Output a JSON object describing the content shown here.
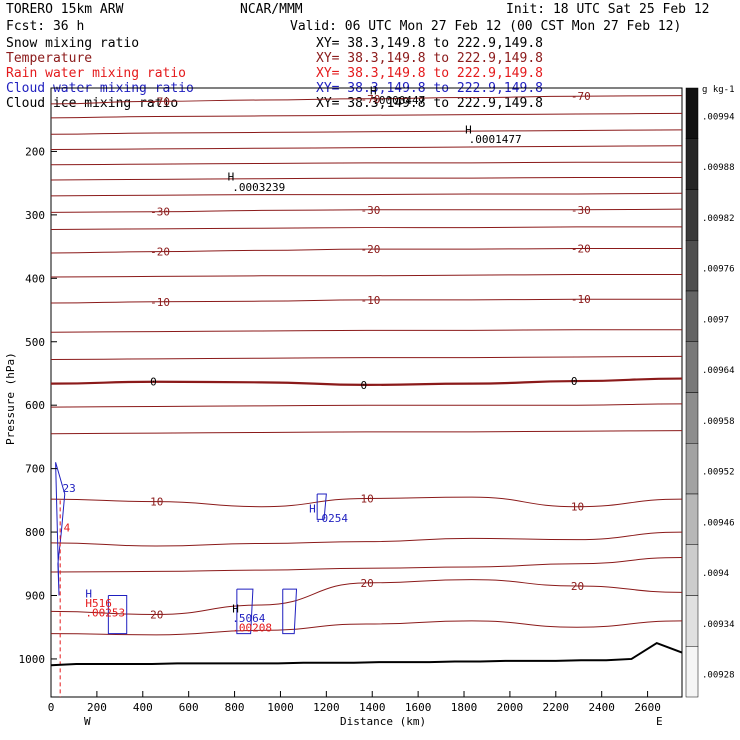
{
  "header": {
    "model": "TORERO  15km ARW",
    "org": "NCAR/MMM",
    "init": "Init: 18 UTC Sat 25 Feb 12",
    "fcst": "Fcst:   36 h",
    "valid": "Valid: 06 UTC Mon 27 Feb 12 (00 CST Mon 27 Feb 12)"
  },
  "fields": [
    {
      "label": "Snow mixing ratio",
      "xy": "XY=  38.3,149.8 to 222.9,149.8",
      "color": "#000000"
    },
    {
      "label": "Temperature",
      "xy": "XY=  38.3,149.8 to 222.9,149.8",
      "color": "#8b1a1a"
    },
    {
      "label": "Rain water mixing ratio",
      "xy": "XY=  38.3,149.8 to 222.9,149.8",
      "color": "#e41a1c"
    },
    {
      "label": "Cloud water mixing ratio",
      "xy": "XY=  38.3,149.8 to 222.9,149.8",
      "color": "#1f1fbf"
    },
    {
      "label": "Cloud ice mixing ratio",
      "xy": "XY=  38.3,149.8 to 222.9,149.8",
      "color": "#000000"
    }
  ],
  "chart_data": {
    "type": "contour cross-section",
    "xlabel": "Distance (km)",
    "ylabel": "Pressure (hPa)",
    "x_ticks": [
      0,
      200,
      400,
      600,
      800,
      1000,
      1200,
      1400,
      1600,
      1800,
      2000,
      2200,
      2400,
      2600
    ],
    "y_ticks": [
      200,
      300,
      400,
      500,
      600,
      700,
      800,
      900,
      1000
    ],
    "xlim": [
      0,
      2750
    ],
    "ylim": [
      1060,
      100
    ],
    "left_end_label": "W",
    "right_end_label": "E",
    "temperature_contours": [
      {
        "level": "-70",
        "p": [
          125,
          121,
          119,
          117,
          115,
          113,
          112
        ]
      },
      {
        "level": "",
        "p": [
          147,
          145,
          144,
          143,
          142,
          141,
          140
        ]
      },
      {
        "level": "",
        "p": [
          173,
          171,
          170,
          169,
          168,
          167,
          166
        ]
      },
      {
        "level": "",
        "p": [
          197,
          196,
          195,
          194,
          193,
          192,
          191
        ]
      },
      {
        "level": "",
        "p": [
          221,
          220,
          219,
          218,
          218,
          217,
          217
        ]
      },
      {
        "level": "",
        "p": [
          245,
          244,
          243,
          242,
          242,
          241,
          241
        ]
      },
      {
        "level": "",
        "p": [
          270,
          269,
          268,
          268,
          267,
          267,
          266
        ]
      },
      {
        "level": "-30",
        "p": [
          296,
          295,
          293,
          292,
          292,
          292,
          291
        ]
      },
      {
        "level": "",
        "p": [
          323,
          322,
          321,
          320,
          320,
          319,
          319
        ]
      },
      {
        "level": "-20",
        "p": [
          360,
          358,
          356,
          354,
          354,
          353,
          353
        ]
      },
      {
        "level": "",
        "p": [
          398,
          397,
          396,
          396,
          395,
          394,
          394
        ]
      },
      {
        "level": "-10",
        "p": [
          439,
          437,
          436,
          434,
          434,
          433,
          433
        ]
      },
      {
        "level": "",
        "p": [
          485,
          484,
          483,
          482,
          482,
          481,
          481
        ]
      },
      {
        "level": "",
        "p": [
          528,
          527,
          526,
          525,
          525,
          524,
          523
        ]
      },
      {
        "level": "0",
        "p": [
          566,
          563,
          564,
          568,
          566,
          562,
          558
        ]
      },
      {
        "level": "",
        "p": [
          603,
          602,
          601,
          600,
          600,
          600,
          598
        ]
      },
      {
        "level": "",
        "p": [
          645,
          644,
          643,
          642,
          642,
          641,
          640
        ]
      },
      {
        "level": "10",
        "p": [
          748,
          752,
          760,
          747,
          745,
          760,
          748
        ]
      },
      {
        "level": "",
        "p": [
          817,
          822,
          818,
          815,
          810,
          812,
          800
        ]
      },
      {
        "level": "",
        "p": [
          863,
          862,
          860,
          857,
          855,
          850,
          840
        ]
      },
      {
        "level": "20",
        "p": [
          925,
          930,
          915,
          880,
          875,
          885,
          895
        ]
      },
      {
        "level": "",
        "p": [
          960,
          962,
          955,
          945,
          940,
          950,
          940
        ]
      }
    ],
    "annotations": [
      {
        "text": "H",
        "x": 1390,
        "p": 110,
        "color": "#000000"
      },
      {
        "text": ".0000447",
        "x": 1400,
        "p": 125,
        "color": "#000000"
      },
      {
        "text": "H",
        "x": 1805,
        "p": 172,
        "color": "#000000"
      },
      {
        "text": ".0001477",
        "x": 1820,
        "p": 187,
        "color": "#000000"
      },
      {
        "text": "H",
        "x": 770,
        "p": 246,
        "color": "#000000"
      },
      {
        "text": ".0003239",
        "x": 790,
        "p": 262,
        "color": "#000000"
      },
      {
        "text": "H",
        "x": 1125,
        "p": 769,
        "color": "#1f1fbf"
      },
      {
        "text": ".0254",
        "x": 1150,
        "p": 784,
        "color": "#1f1fbf"
      },
      {
        "text": "H",
        "x": 150,
        "p": 903,
        "color": "#1f1fbf"
      },
      {
        "text": "H516",
        "x": 150,
        "p": 918,
        "color": "#e41a1c"
      },
      {
        "text": ".00253",
        "x": 150,
        "p": 933,
        "color": "#e41a1c"
      },
      {
        "text": "H",
        "x": 790,
        "p": 927,
        "color": "#000000"
      },
      {
        "text": ".5064",
        "x": 790,
        "p": 942,
        "color": "#1f1fbf"
      },
      {
        "text": ".00208",
        "x": 790,
        "p": 957,
        "color": "#e41a1c"
      },
      {
        "text": "4",
        "x": 55,
        "p": 799,
        "color": "#e41a1c"
      },
      {
        "text": "23",
        "x": 50,
        "p": 737,
        "color": "#1f1fbf"
      }
    ],
    "cloud_water_contours": [
      {
        "x": [
          20,
          60,
          45,
          30,
          35,
          20
        ],
        "p": [
          690,
          740,
          800,
          850,
          900,
          690
        ]
      },
      {
        "x": [
          250,
          330,
          330,
          250,
          250
        ],
        "p": [
          900,
          900,
          960,
          960,
          900
        ]
      },
      {
        "x": [
          810,
          880,
          870,
          810,
          810
        ],
        "p": [
          890,
          890,
          960,
          960,
          890
        ]
      },
      {
        "x": [
          1010,
          1070,
          1060,
          1010,
          1010
        ],
        "p": [
          890,
          890,
          960,
          960,
          890
        ]
      },
      {
        "x": [
          1160,
          1200,
          1190,
          1160,
          1160
        ],
        "p": [
          740,
          740,
          780,
          780,
          740
        ]
      }
    ],
    "terrain_p": [
      1010,
      1008,
      1008,
      1008,
      1008,
      1007,
      1007,
      1007,
      1007,
      1007,
      1006,
      1006,
      1006,
      1005,
      1005,
      1005,
      1004,
      1004,
      1003,
      1003,
      1003,
      1002,
      1002,
      1000,
      975,
      990
    ],
    "colorbar": {
      "unit": "g kg-1",
      "ticks": [
        ".00994",
        ".00988",
        ".00982",
        ".00976",
        ".0097",
        ".00964",
        ".00958",
        ".00952",
        ".00946",
        ".0094",
        ".00934",
        ".00928"
      ],
      "top_color": "#111111",
      "bottom_color": "#f5f5f5"
    }
  }
}
